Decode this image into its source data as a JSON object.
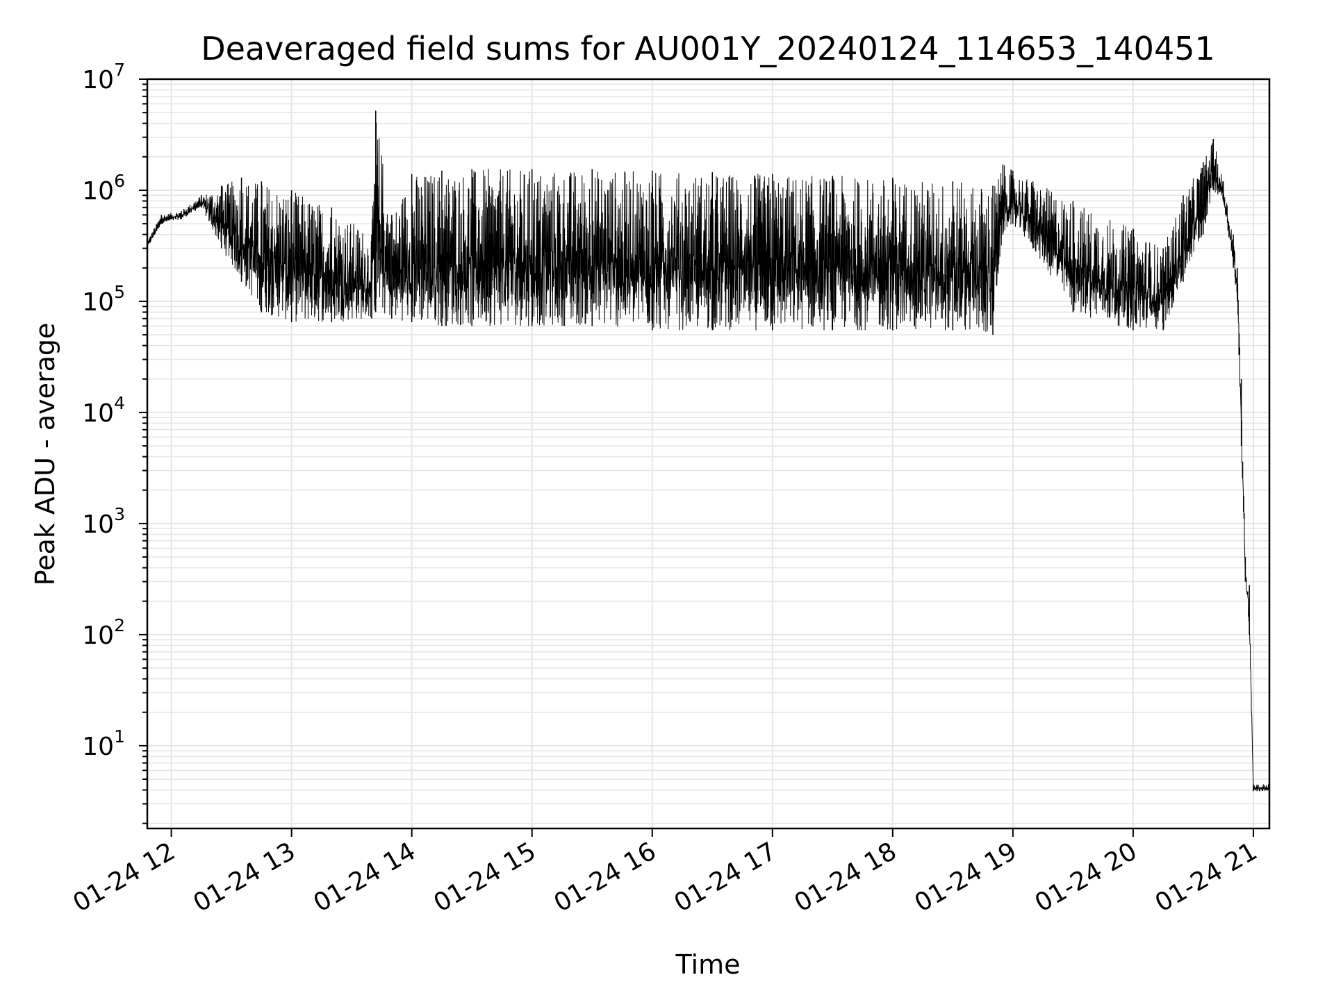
{
  "chart_data": {
    "type": "line",
    "title": "Deaveraged field sums for AU001Y_20240124_114653_140451",
    "xlabel": "Time",
    "ylabel": "Peak ADU - average",
    "yscale": "log",
    "ylim": [
      1.8,
      10000000
    ],
    "xlim": [
      "01-24 11:48",
      "01-24 21:08"
    ],
    "x_tick_labels": [
      "01-24 12",
      "01-24 13",
      "01-24 14",
      "01-24 15",
      "01-24 16",
      "01-24 17",
      "01-24 18",
      "01-24 19",
      "01-24 20",
      "01-24 21"
    ],
    "y_tick_labels": [
      {
        "base": "10",
        "exp": "1"
      },
      {
        "base": "10",
        "exp": "2"
      },
      {
        "base": "10",
        "exp": "3"
      },
      {
        "base": "10",
        "exp": "4"
      },
      {
        "base": "10",
        "exp": "5"
      },
      {
        "base": "10",
        "exp": "6"
      },
      {
        "base": "10",
        "exp": "7"
      }
    ],
    "grid": true,
    "line_color": "#000000",
    "grid_color": "#e6e6e6",
    "series": [
      {
        "x": [
          "01-24 11:48",
          "01-24 11:55",
          "01-24 12:05",
          "01-24 12:15",
          "01-24 12:25",
          "01-24 12:35",
          "01-24 12:45",
          "01-24 13:00",
          "01-24 13:20",
          "01-24 13:40",
          "01-24 13:42",
          "01-24 13:50",
          "01-24 14:00",
          "01-24 14:15",
          "01-24 14:30",
          "01-24 15:00",
          "01-24 15:30",
          "01-24 16:00",
          "01-24 16:30",
          "01-24 17:00",
          "01-24 17:30",
          "01-24 18:00",
          "01-24 18:30",
          "01-24 18:50",
          "01-24 18:55",
          "01-24 19:00",
          "01-24 19:10",
          "01-24 19:30",
          "01-24 20:00",
          "01-24 20:15",
          "01-24 20:25",
          "01-24 20:35",
          "01-24 20:40",
          "01-24 20:45",
          "01-24 20:50",
          "01-24 20:52",
          "01-24 20:54",
          "01-24 20:56",
          "01-24 20:58",
          "01-24 21:00",
          "01-24 21:08"
        ],
        "y_high": [
          350000,
          600000,
          650000,
          900000,
          1100000,
          1300000,
          1200000,
          1000000,
          700000,
          400000,
          5200000,
          600000,
          1400000,
          1500000,
          1550000,
          1550000,
          1550000,
          1500000,
          1450000,
          1400000,
          1350000,
          1300000,
          1200000,
          1100000,
          1700000,
          1500000,
          1200000,
          800000,
          450000,
          300000,
          900000,
          1800000,
          2900000,
          1200000,
          400000,
          200000,
          20000,
          500,
          280,
          4.5,
          4.5
        ],
        "y_low": [
          300000,
          500000,
          550000,
          700000,
          300000,
          150000,
          80000,
          65000,
          65000,
          70000,
          80000,
          70000,
          65000,
          60000,
          60000,
          60000,
          60000,
          55000,
          55000,
          55000,
          55000,
          55000,
          55000,
          50000,
          400000,
          500000,
          300000,
          80000,
          55000,
          55000,
          150000,
          400000,
          1000000,
          800000,
          200000,
          100000,
          5000,
          300,
          100,
          3.9,
          3.9
        ]
      }
    ]
  }
}
